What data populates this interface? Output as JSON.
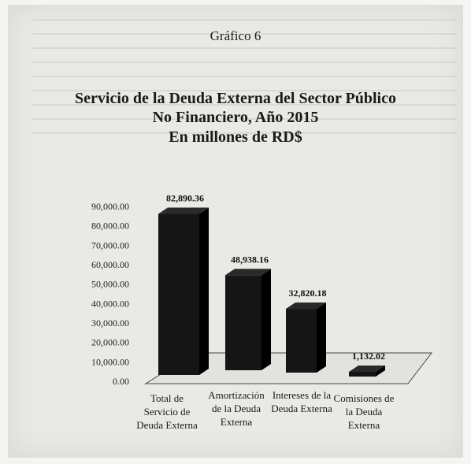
{
  "figure_label": "Gráfico 6",
  "chart_data": {
    "type": "bar",
    "title": "Servicio de la Deuda Externa del Sector Público No Financiero, Año 2015",
    "title_lines": [
      "Servicio de la Deuda Externa del Sector Público",
      "No Financiero, Año 2015",
      "En millones de RD$"
    ],
    "categories": [
      [
        "Total de",
        "Servicio de",
        "Deuda Externa"
      ],
      [
        "Amortización",
        "de la Deuda",
        "Externa"
      ],
      [
        "Intereses de la",
        "Deuda Externa"
      ],
      [
        "Comisiones de",
        "la Deuda",
        "Externa"
      ]
    ],
    "values": [
      82890.36,
      48938.16,
      32820.18,
      1132.02
    ],
    "value_labels": [
      "82,890.36",
      "48,938.16",
      "32,820.18",
      "1,132.02"
    ],
    "ylim": [
      0,
      90000
    ],
    "yticks": [
      "0.00",
      "10,000.00",
      "20,000.00",
      "30,000.00",
      "40,000.00",
      "50,000.00",
      "60,000.00",
      "70,000.00",
      "80,000.00",
      "90,000.00"
    ],
    "xlabel": "",
    "ylabel": "",
    "grid": false,
    "legend": "none",
    "bar_color": "#151515"
  }
}
